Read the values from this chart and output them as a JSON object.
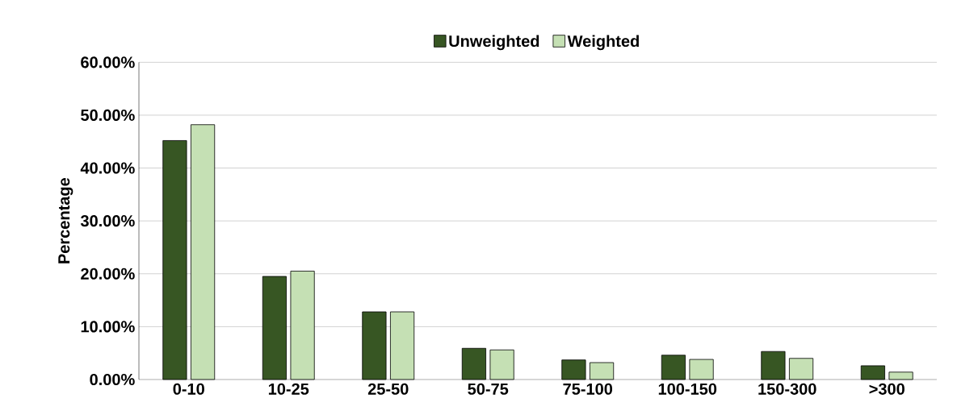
{
  "chart_data": {
    "type": "bar",
    "ylabel": "Percentage",
    "categories": [
      "0-10",
      "10-25",
      "25-50",
      "50-75",
      "75-100",
      "100-150",
      "150-300",
      ">300"
    ],
    "series": [
      {
        "name": "Unweighted",
        "color": "#375623",
        "values": [
          45.2,
          19.5,
          12.8,
          5.9,
          3.7,
          4.6,
          5.3,
          2.6
        ]
      },
      {
        "name": "Weighted",
        "color": "#c5e0b4",
        "values": [
          48.2,
          20.5,
          12.8,
          5.6,
          3.2,
          3.8,
          4.0,
          1.4
        ]
      }
    ],
    "ylim": [
      0,
      60
    ],
    "yticks": [
      {
        "value": 0,
        "label": "0.00%"
      },
      {
        "value": 10,
        "label": "10.00%"
      },
      {
        "value": 20,
        "label": "20.00%"
      },
      {
        "value": 30,
        "label": "30.00%"
      },
      {
        "value": 40,
        "label": "40.00%"
      },
      {
        "value": 50,
        "label": "50.00%"
      },
      {
        "value": 60,
        "label": "60.00%"
      }
    ],
    "grid": "y",
    "legend": "top"
  }
}
